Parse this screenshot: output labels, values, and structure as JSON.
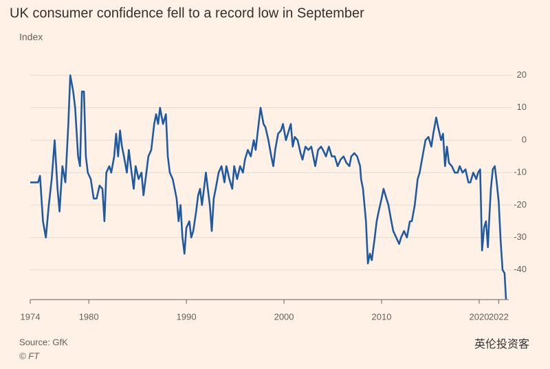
{
  "chart_data": {
    "type": "line",
    "title": "UK consumer confidence fell to a record low in September",
    "subtitle": "Index",
    "source": "Source: GfK",
    "credit": "© FT",
    "watermark": "英伦投资客",
    "color": "#1f5aa0",
    "grid": true,
    "xlim": [
      1974,
      2022.75
    ],
    "xticks": [
      1974,
      1980,
      1990,
      2000,
      2010,
      2020,
      2022
    ],
    "ylim": [
      -50,
      25
    ],
    "yticks": [
      20,
      10,
      0,
      -10,
      -20,
      -30,
      -40
    ],
    "x": [
      1974.0,
      1974.8,
      1975.0,
      1975.3,
      1975.6,
      1975.9,
      1976.2,
      1976.5,
      1976.8,
      1977.0,
      1977.3,
      1977.6,
      1977.9,
      1978.1,
      1978.4,
      1978.6,
      1978.9,
      1979.1,
      1979.3,
      1979.5,
      1979.7,
      1979.9,
      1980.2,
      1980.5,
      1980.8,
      1981.1,
      1981.4,
      1981.6,
      1981.8,
      1982.1,
      1982.3,
      1982.6,
      1982.8,
      1983.0,
      1983.2,
      1983.4,
      1983.6,
      1983.9,
      1984.1,
      1984.3,
      1984.6,
      1984.8,
      1985.1,
      1985.4,
      1985.6,
      1985.9,
      1986.1,
      1986.4,
      1986.7,
      1986.9,
      1987.1,
      1987.3,
      1987.6,
      1987.9,
      1988.1,
      1988.3,
      1988.6,
      1988.8,
      1989.0,
      1989.2,
      1989.4,
      1989.6,
      1989.8,
      1990.0,
      1990.3,
      1990.5,
      1990.7,
      1991.0,
      1991.2,
      1991.4,
      1991.6,
      1991.8,
      1992.0,
      1992.2,
      1992.4,
      1992.6,
      1992.8,
      1993.0,
      1993.3,
      1993.6,
      1993.9,
      1994.1,
      1994.4,
      1994.7,
      1994.9,
      1995.2,
      1995.5,
      1995.8,
      1996.0,
      1996.3,
      1996.6,
      1996.9,
      1997.1,
      1997.4,
      1997.6,
      1997.9,
      1998.1,
      1998.4,
      1998.7,
      1998.9,
      1999.1,
      1999.4,
      1999.7,
      1999.9,
      2000.2,
      2000.4,
      2000.7,
      2000.9,
      2001.1,
      2001.4,
      2001.7,
      2001.9,
      2002.2,
      2002.5,
      2002.8,
      2003.0,
      2003.2,
      2003.5,
      2003.8,
      2004.0,
      2004.3,
      2004.6,
      2004.9,
      2005.2,
      2005.5,
      2005.8,
      2006.1,
      2006.4,
      2006.7,
      2006.9,
      2007.2,
      2007.5,
      2007.8,
      2007.9,
      2008.1,
      2008.4,
      2008.6,
      2008.8,
      2009.0,
      2009.3,
      2009.5,
      2009.7,
      2010.0,
      2010.2,
      2010.5,
      2010.7,
      2011.0,
      2011.2,
      2011.5,
      2011.8,
      2012.0,
      2012.3,
      2012.6,
      2012.9,
      2013.1,
      2013.4,
      2013.7,
      2013.9,
      2014.2,
      2014.5,
      2014.8,
      2015.1,
      2015.3,
      2015.6,
      2015.8,
      2016.1,
      2016.3,
      2016.5,
      2016.7,
      2016.9,
      2017.2,
      2017.5,
      2017.8,
      2018.0,
      2018.3,
      2018.6,
      2018.9,
      2019.1,
      2019.4,
      2019.7,
      2019.9,
      2020.1,
      2020.3,
      2020.5,
      2020.7,
      2020.9,
      2021.0,
      2021.2,
      2021.4,
      2021.6,
      2021.8,
      2022.0,
      2022.2,
      2022.4,
      2022.6,
      2022.75
    ],
    "values": [
      -13,
      -13,
      -11,
      -25,
      -30,
      -20,
      -12,
      0,
      -15,
      -22,
      -8,
      -13,
      5,
      20,
      15,
      10,
      -5,
      -8,
      15,
      15,
      -5,
      -10,
      -12,
      -18,
      -18,
      -14,
      -15,
      -25,
      -10,
      -8,
      -10,
      -5,
      2,
      -5,
      3,
      -2,
      -5,
      -10,
      -3,
      -8,
      -15,
      -8,
      -12,
      -10,
      -17,
      -10,
      -5,
      -3,
      5,
      8,
      5,
      10,
      5,
      8,
      -5,
      -10,
      -12,
      -15,
      -18,
      -25,
      -20,
      -30,
      -35,
      -27,
      -25,
      -30,
      -28,
      -22,
      -17,
      -15,
      -20,
      -15,
      -10,
      -15,
      -20,
      -28,
      -18,
      -15,
      -10,
      -8,
      -13,
      -8,
      -12,
      -15,
      -8,
      -12,
      -8,
      -10,
      -6,
      -3,
      -5,
      0,
      -3,
      5,
      10,
      5,
      4,
      0,
      -5,
      -8,
      -3,
      2,
      3,
      5,
      0,
      2,
      5,
      -2,
      1,
      0,
      -4,
      -6,
      -2,
      -3,
      -2,
      -5,
      -8,
      -3,
      -2,
      -3,
      -5,
      -2,
      -5,
      -5,
      -8,
      -6,
      -5,
      -7,
      -8,
      -5,
      -4,
      -5,
      -8,
      -12,
      -15,
      -25,
      -38,
      -35,
      -37,
      -30,
      -25,
      -22,
      -18,
      -15,
      -18,
      -20,
      -25,
      -28,
      -30,
      -32,
      -30,
      -28,
      -30,
      -25,
      -25,
      -20,
      -12,
      -10,
      -5,
      0,
      1,
      -2,
      2,
      7,
      4,
      0,
      2,
      -8,
      -2,
      -7,
      -8,
      -10,
      -10,
      -8,
      -10,
      -9,
      -13,
      -13,
      -10,
      -12,
      -10,
      -9,
      -34,
      -27,
      -25,
      -33,
      -26,
      -15,
      -9,
      -8,
      -13,
      -19,
      -31,
      -40,
      -41,
      -49
    ]
  }
}
